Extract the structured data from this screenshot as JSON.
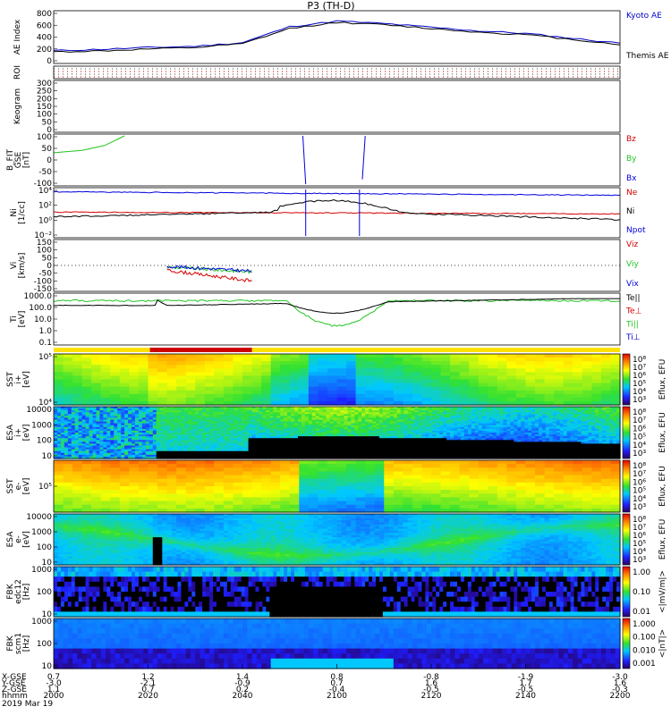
{
  "title": "P3 (TH-D)",
  "colors": {
    "kyoto": "#0000cc",
    "themis": "#000000",
    "red": "#d40000",
    "green": "#22c422",
    "blue": "#0000dd",
    "roi_bar_red": "#cc0000",
    "roi_bar_yellow": "#ffe000"
  },
  "footer": {
    "row_labels": [
      "X-GSE",
      "Y-GSE",
      "Z-GSE",
      "hhmm",
      "2019 Mar 19"
    ],
    "columns": [
      {
        "x": "0.7",
        "y": "-3.0",
        "z": "1.1",
        "t": "2000"
      },
      {
        "x": "1.2",
        "y": "-2.1",
        "z": "0.7",
        "t": "2020"
      },
      {
        "x": "1.4",
        "y": "-0.9",
        "z": "0.2",
        "t": "2040"
      },
      {
        "x": "0.8",
        "y": "0.7",
        "z": "-0.4",
        "t": "2100"
      },
      {
        "x": "-0.8",
        "y": "1.6",
        "z": "-0.5",
        "t": "2120"
      },
      {
        "x": "-1.9",
        "y": "1.7",
        "z": "-0.5",
        "t": "2140"
      },
      {
        "x": "-3.0",
        "y": "1.6",
        "z": "-0.3",
        "t": "2200"
      }
    ]
  },
  "colorbars": [
    {
      "label": "Eflux, EFU",
      "ticks": [
        "10⁸",
        "10⁷",
        "10⁶",
        "10⁵",
        "10⁴",
        "10³"
      ]
    },
    {
      "label": "<|mV/m|>",
      "ticks": [
        "1.00",
        "0.10",
        "0.01"
      ]
    },
    {
      "label": "<|nT|>",
      "ticks": [
        "1.000",
        "0.100",
        "0.010",
        "0.001"
      ]
    }
  ],
  "chart_data": [
    {
      "type": "line",
      "panel": "ae",
      "ylabel": "AE Index",
      "ylim": [
        0,
        800
      ],
      "yticks": [
        "800",
        "600",
        "400",
        "200",
        "0"
      ],
      "x_hhmm": [
        "2000",
        "2010",
        "2020",
        "2030",
        "2040",
        "2050",
        "2100",
        "2110",
        "2120",
        "2130",
        "2140",
        "2150",
        "2200"
      ],
      "series": [
        {
          "name": "Kyoto AE",
          "values": [
            180,
            200,
            230,
            250,
            310,
            570,
            660,
            620,
            560,
            500,
            460,
            380,
            300
          ]
        },
        {
          "name": "Themis AE",
          "values": [
            160,
            175,
            205,
            230,
            290,
            540,
            640,
            600,
            540,
            480,
            440,
            360,
            280
          ]
        }
      ]
    },
    {
      "type": "line",
      "panel": "roi",
      "ylabel": "ROI"
    },
    {
      "type": "line",
      "panel": "keogram",
      "ylabel": "Keogram",
      "yticks": [
        "300",
        "250",
        "200",
        "150",
        "100",
        "50",
        "0"
      ]
    },
    {
      "type": "line",
      "panel": "bfit",
      "ylabel": [
        "B_FIT",
        "GSE",
        "[nT]"
      ],
      "ylim": [
        -100,
        100
      ],
      "yticks": [
        "100",
        "50",
        "0",
        "-50",
        "-100"
      ],
      "series": [
        {
          "name": "Bz",
          "values": []
        },
        {
          "name": "By",
          "values": [
            30,
            45,
            70,
            100
          ]
        },
        {
          "name": "Bx",
          "values": []
        }
      ]
    },
    {
      "type": "line",
      "panel": "ni",
      "ylabel": [
        "Ni",
        "[1/cc]"
      ],
      "yticks": [
        "10⁴",
        "10²",
        "10⁰",
        "10⁻²"
      ],
      "series": [
        {
          "name": "Ne"
        },
        {
          "name": "Ni"
        },
        {
          "name": "Npot"
        }
      ]
    },
    {
      "type": "line",
      "panel": "vi",
      "ylabel": [
        "Vi",
        "[km/s]"
      ],
      "ylim": [
        -150,
        150
      ],
      "yticks": [
        "150",
        "100",
        "50",
        "0",
        "-50",
        "-100",
        "-150"
      ],
      "series": [
        {
          "name": "Viz"
        },
        {
          "name": "Viy"
        },
        {
          "name": "Vix"
        }
      ]
    },
    {
      "type": "line",
      "panel": "ti",
      "ylabel": [
        "Ti",
        "[eV]"
      ],
      "yticks": [
        "1000.0",
        "100.0",
        "10.0",
        "1.0",
        "0.1"
      ],
      "series": [
        {
          "name": "Te||"
        },
        {
          "name": "Te⊥"
        },
        {
          "name": "Ti||"
        },
        {
          "name": "Ti⊥"
        }
      ]
    },
    {
      "type": "heatmap",
      "panel": "sst_i",
      "ylabel": [
        "SST",
        "i+",
        "[eV]"
      ],
      "yticks": [
        "10⁵",
        "10⁴"
      ]
    },
    {
      "type": "heatmap",
      "panel": "esa_i",
      "ylabel": [
        "ESA",
        "i+",
        "[eV]"
      ],
      "yticks": [
        "10000",
        "1000",
        "100",
        "10"
      ]
    },
    {
      "type": "heatmap",
      "panel": "sst_e",
      "ylabel": [
        "SST",
        "e-",
        "[eV]"
      ],
      "yticks": [
        "10⁵"
      ]
    },
    {
      "type": "heatmap",
      "panel": "esa_e",
      "ylabel": [
        "ESA",
        "e-",
        "[eV]"
      ],
      "yticks": [
        "10000",
        "1000",
        "100",
        "10"
      ]
    },
    {
      "type": "heatmap",
      "panel": "fbk_e",
      "ylabel": [
        "FBK",
        "edc12",
        "[Hz]"
      ],
      "yticks": [
        "1000",
        "100",
        "10"
      ]
    },
    {
      "type": "heatmap",
      "panel": "fbk_b",
      "ylabel": [
        "FBK",
        "scm1",
        "[Hz]"
      ],
      "yticks": [
        "1000",
        "100",
        "10"
      ]
    }
  ]
}
